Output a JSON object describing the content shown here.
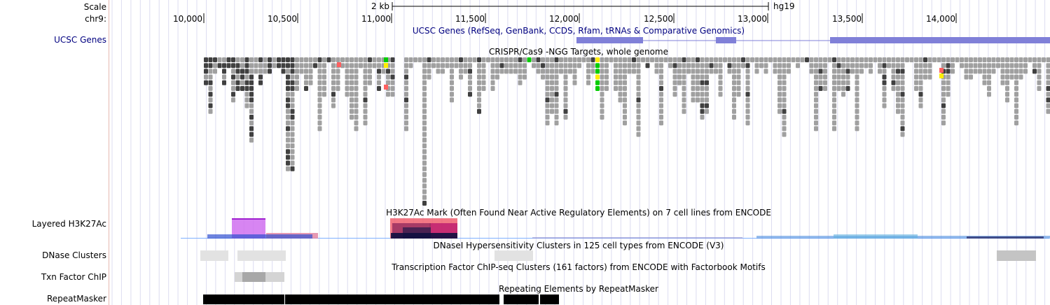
{
  "labels": {
    "scale": "Scale",
    "chrom": "chr9:",
    "ucsc_genes": "UCSC Genes",
    "layered": "Layered H3K27Ac",
    "dnase": "DNase Clusters",
    "txn": "Txn Factor ChIP",
    "repeat": "RepeatMasker"
  },
  "scale": {
    "length_label": "2 kb",
    "assembly": "hg19"
  },
  "ruler": {
    "ticks": [
      "10,000",
      "10,500",
      "11,000",
      "11,500",
      "12,000",
      "12,500",
      "13,000",
      "13,500",
      "14,000"
    ]
  },
  "titles": {
    "genes": "UCSC Genes (RefSeq, GenBank, CCDS, Rfam, tRNAs & Comparative Genomics)",
    "crispr": "CRISPR/Cas9 -NGG Targets, whole genome",
    "h3k27ac": "H3K27Ac Mark (Often Found Near Active Regulatory Elements) on 7 cell lines from ENCODE",
    "dnase": "DNaseI Hypersensitivity Clusters in 125 cell types from ENCODE (V3)",
    "txn": "Transcription Factor ChIP-seq Clusters (161 factors) from ENCODE with Factorbook Motifs",
    "repeat": "Repeating Elements by RepeatMasker"
  },
  "colors": {
    "gene": "#8080d8",
    "crispr_gray": "#a0a0a0",
    "crispr_dark": "#404040",
    "crispr_green": "#00cc00",
    "crispr_yellow": "#ffee00",
    "crispr_red": "#ff6060",
    "dnase_light": "#e2e2e2",
    "dnase_dark": "#c4c4c4",
    "repeat": "#000000",
    "grid": "#dcdcf0"
  }
}
